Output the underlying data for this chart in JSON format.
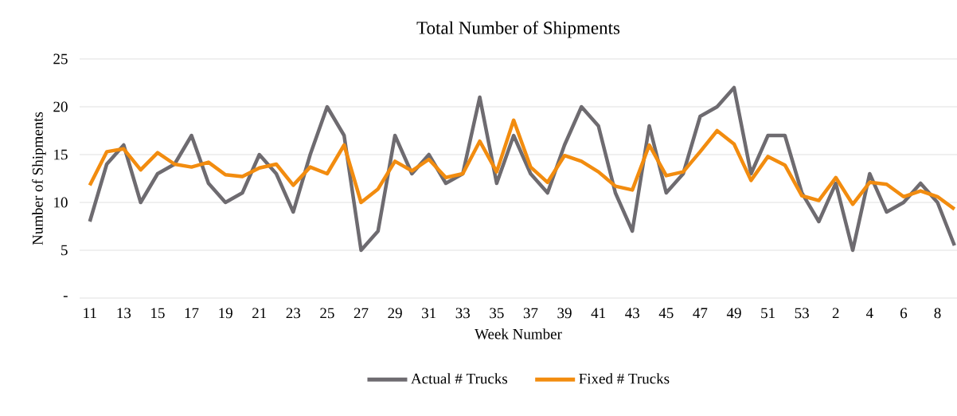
{
  "chart_data": {
    "type": "line",
    "title": "Total Number of Shipments",
    "xlabel": "Week Number",
    "ylabel": "Number of Shipments",
    "categories": [
      "11",
      null,
      "13",
      null,
      "15",
      null,
      "17",
      null,
      "19",
      null,
      "21",
      null,
      "23",
      null,
      "25",
      null,
      "27",
      null,
      "29",
      null,
      "31",
      null,
      "33",
      null,
      "35",
      null,
      "37",
      null,
      "39",
      null,
      "41",
      null,
      "43",
      null,
      "45",
      null,
      "47",
      null,
      "49",
      null,
      "51",
      null,
      "53",
      null,
      "2",
      null,
      "4",
      null,
      "6",
      null,
      "8",
      null
    ],
    "series": [
      {
        "name": "Actual # Trucks",
        "color": "#6e6b70",
        "values": [
          8,
          14,
          16,
          10,
          13,
          14,
          17,
          12,
          10,
          11,
          15,
          13,
          9,
          15,
          20,
          17,
          5,
          7,
          17,
          13,
          15,
          12,
          13,
          21,
          12,
          17,
          13,
          11,
          16,
          20,
          18,
          11,
          7,
          18,
          11,
          13,
          19,
          20,
          22,
          13,
          17,
          17,
          11,
          8,
          12,
          5,
          13,
          9,
          10,
          12,
          10,
          5.5
        ]
      },
      {
        "name": "Fixed # Trucks",
        "color": "#f28c0f",
        "values": [
          11.8,
          15.3,
          15.6,
          13.4,
          15.2,
          14,
          13.7,
          14.2,
          12.9,
          12.7,
          13.6,
          14,
          11.8,
          13.7,
          13,
          16,
          10,
          11.4,
          14.3,
          13.3,
          14.5,
          12.6,
          13,
          16.4,
          13.2,
          18.6,
          13.7,
          12.1,
          14.9,
          14.3,
          13.2,
          11.7,
          11.3,
          16,
          12.8,
          13.2,
          15.3,
          17.5,
          16.1,
          12.3,
          14.8,
          13.9,
          10.7,
          10.2,
          12.6,
          9.8,
          12.1,
          11.9,
          10.6,
          11.2,
          10.6,
          9.3
        ]
      }
    ],
    "ylim": [
      0,
      25
    ],
    "yticks": [
      {
        "value": 0,
        "label": "-"
      },
      5,
      10,
      15,
      20,
      25
    ],
    "grid": "y",
    "legend": "bottom",
    "marker": "none",
    "line_style": "solid"
  }
}
